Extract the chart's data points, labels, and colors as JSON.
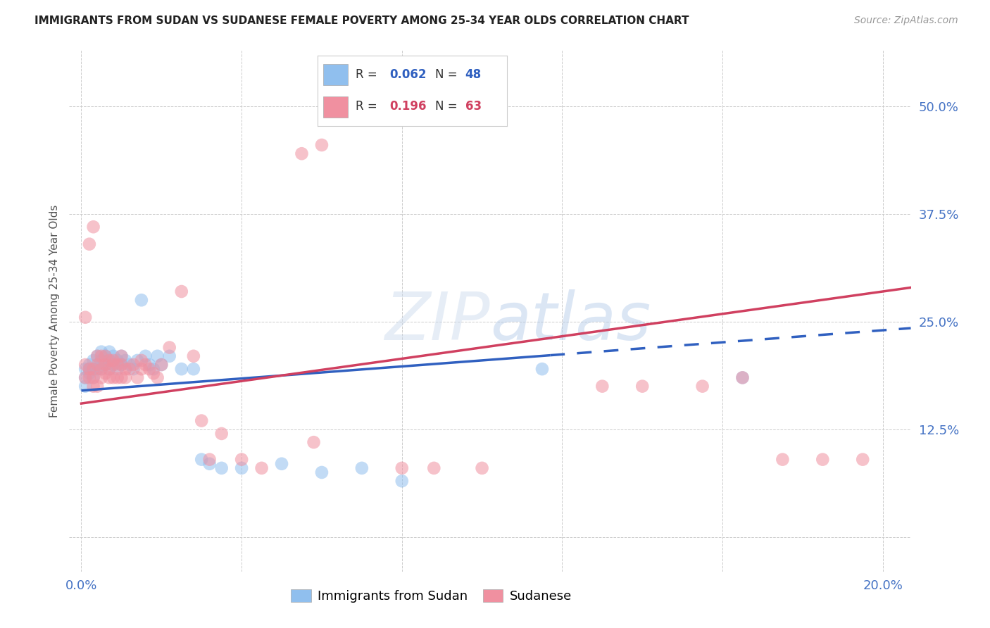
{
  "title": "IMMIGRANTS FROM SUDAN VS SUDANESE FEMALE POVERTY AMONG 25-34 YEAR OLDS CORRELATION CHART",
  "source": "Source: ZipAtlas.com",
  "ylabel": "Female Poverty Among 25-34 Year Olds",
  "legend_label1": "Immigrants from Sudan",
  "legend_label2": "Sudanese",
  "R1": 0.062,
  "N1": 48,
  "R2": 0.196,
  "N2": 63,
  "color_blue_scatter": "#90BFEE",
  "color_pink_scatter": "#F090A0",
  "color_blue_line": "#3060C0",
  "color_pink_line": "#D04060",
  "color_axis_text": "#4472C4",
  "color_title": "#222222",
  "color_source": "#999999",
  "color_watermark": "#C8D8F0",
  "grid_color": "#CCCCCC",
  "xlim": [
    -0.003,
    0.207
  ],
  "ylim": [
    -0.04,
    0.565
  ],
  "x_ticks": [
    0.0,
    0.04,
    0.08,
    0.12,
    0.16,
    0.2
  ],
  "y_ticks": [
    0.0,
    0.125,
    0.25,
    0.375,
    0.5
  ],
  "x_tick_labels": [
    "0.0%",
    "",
    "",
    "",
    "",
    "20.0%"
  ],
  "y_tick_labels": [
    "",
    "12.5%",
    "25.0%",
    "37.5%",
    "50.0%"
  ],
  "blue_x": [
    0.001,
    0.001,
    0.001,
    0.002,
    0.002,
    0.002,
    0.003,
    0.003,
    0.003,
    0.004,
    0.004,
    0.005,
    0.005,
    0.005,
    0.006,
    0.006,
    0.007,
    0.007,
    0.007,
    0.008,
    0.008,
    0.009,
    0.009,
    0.01,
    0.01,
    0.011,
    0.012,
    0.013,
    0.014,
    0.015,
    0.016,
    0.017,
    0.018,
    0.019,
    0.02,
    0.022,
    0.025,
    0.028,
    0.03,
    0.032,
    0.035,
    0.04,
    0.05,
    0.06,
    0.07,
    0.08,
    0.115,
    0.165
  ],
  "blue_y": [
    0.195,
    0.185,
    0.175,
    0.2,
    0.195,
    0.19,
    0.205,
    0.195,
    0.185,
    0.21,
    0.195,
    0.215,
    0.205,
    0.195,
    0.21,
    0.2,
    0.215,
    0.205,
    0.195,
    0.21,
    0.2,
    0.205,
    0.195,
    0.2,
    0.21,
    0.205,
    0.2,
    0.195,
    0.205,
    0.275,
    0.21,
    0.2,
    0.195,
    0.21,
    0.2,
    0.21,
    0.195,
    0.195,
    0.09,
    0.085,
    0.08,
    0.08,
    0.085,
    0.075,
    0.08,
    0.065,
    0.195,
    0.185
  ],
  "pink_x": [
    0.001,
    0.001,
    0.001,
    0.002,
    0.002,
    0.002,
    0.003,
    0.003,
    0.003,
    0.003,
    0.004,
    0.004,
    0.004,
    0.005,
    0.005,
    0.005,
    0.006,
    0.006,
    0.006,
    0.007,
    0.007,
    0.007,
    0.008,
    0.008,
    0.008,
    0.009,
    0.009,
    0.01,
    0.01,
    0.01,
    0.011,
    0.011,
    0.012,
    0.013,
    0.014,
    0.015,
    0.015,
    0.016,
    0.017,
    0.018,
    0.019,
    0.02,
    0.022,
    0.025,
    0.028,
    0.03,
    0.032,
    0.035,
    0.04,
    0.045,
    0.055,
    0.058,
    0.06,
    0.08,
    0.088,
    0.1,
    0.13,
    0.14,
    0.155,
    0.165,
    0.175,
    0.185,
    0.195
  ],
  "pink_y": [
    0.255,
    0.2,
    0.185,
    0.34,
    0.195,
    0.185,
    0.195,
    0.185,
    0.36,
    0.175,
    0.21,
    0.2,
    0.175,
    0.21,
    0.195,
    0.185,
    0.21,
    0.2,
    0.19,
    0.205,
    0.195,
    0.185,
    0.205,
    0.2,
    0.185,
    0.2,
    0.185,
    0.21,
    0.2,
    0.185,
    0.195,
    0.185,
    0.195,
    0.2,
    0.185,
    0.205,
    0.195,
    0.2,
    0.195,
    0.19,
    0.185,
    0.2,
    0.22,
    0.285,
    0.21,
    0.135,
    0.09,
    0.12,
    0.09,
    0.08,
    0.445,
    0.11,
    0.455,
    0.08,
    0.08,
    0.08,
    0.175,
    0.175,
    0.175,
    0.185,
    0.09,
    0.09,
    0.09
  ],
  "blue_line_x0": 0.0,
  "blue_line_x_solid_end": 0.117,
  "blue_line_x_dash_end": 0.207,
  "blue_line_y0": 0.17,
  "blue_line_slope": 0.35,
  "pink_line_x0": 0.0,
  "pink_line_x_end": 0.207,
  "pink_line_y0": 0.155,
  "pink_line_slope": 0.65
}
